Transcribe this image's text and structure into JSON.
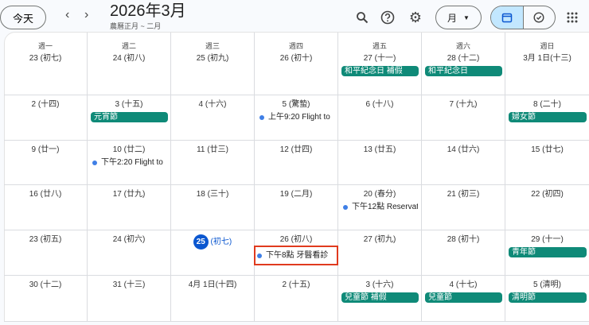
{
  "header": {
    "today": "今天",
    "title": "2026年3月",
    "subtitle": "農曆正月 ~ 二月",
    "view": "月",
    "prev": "‹",
    "next": "›"
  },
  "icons": [
    "search-icon",
    "help-icon",
    "settings-icon",
    "calendar-icon",
    "tasks-icon",
    "apps-icon"
  ],
  "colors": {
    "holiday": "#0f8a78",
    "today": "#0b57d0",
    "event_dot": "#3f7fe6",
    "highlight": "#e03a1e"
  },
  "weekdays": [
    "週一",
    "週二",
    "週三",
    "週四",
    "週五",
    "週六",
    "週日"
  ],
  "weeks": [
    [
      {
        "d": "23 (初七)"
      },
      {
        "d": "24 (初八)"
      },
      {
        "d": "25 (初九)"
      },
      {
        "d": "26 (初十)"
      },
      {
        "d": "27 (十一)",
        "chips": [
          "和平紀念日 補假"
        ]
      },
      {
        "d": "28 (十二)",
        "chips": [
          "和平紀念日"
        ]
      },
      {
        "d": "3月 1日(十三)"
      }
    ],
    [
      {
        "d": "2 (十四)"
      },
      {
        "d": "3 (十五)",
        "chips": [
          "元宵節"
        ]
      },
      {
        "d": "4 (十六)"
      },
      {
        "d": "5 (驚蟄)",
        "events": [
          "上午9:20 Flight to"
        ]
      },
      {
        "d": "6 (十八)"
      },
      {
        "d": "7 (十九)"
      },
      {
        "d": "8 (二十)",
        "chips": [
          "婦女節"
        ]
      }
    ],
    [
      {
        "d": "9 (廿一)"
      },
      {
        "d": "10 (廿二)",
        "events": [
          "下午2:20 Flight to"
        ]
      },
      {
        "d": "11 (廿三)"
      },
      {
        "d": "12 (廿四)"
      },
      {
        "d": "13 (廿五)"
      },
      {
        "d": "14 (廿六)"
      },
      {
        "d": "15 (廿七)"
      }
    ],
    [
      {
        "d": "16 (廿八)"
      },
      {
        "d": "17 (廿九)"
      },
      {
        "d": "18 (三十)"
      },
      {
        "d": "19 (二月)"
      },
      {
        "d": "20 (春分)",
        "events": [
          "下午12點 Reservat"
        ]
      },
      {
        "d": "21 (初三)"
      },
      {
        "d": "22 (初四)"
      }
    ],
    [
      {
        "d": "23 (初五)"
      },
      {
        "d": "24 (初六)"
      },
      {
        "today": true,
        "num": "25",
        "lunar": "(初七)"
      },
      {
        "d": "26 (初八)",
        "events": [
          "下午8點 牙醫看診"
        ],
        "highlight": true
      },
      {
        "d": "27 (初九)"
      },
      {
        "d": "28 (初十)"
      },
      {
        "d": "29 (十一)",
        "chips": [
          "青年節"
        ]
      }
    ],
    [
      {
        "d": "30 (十二)"
      },
      {
        "d": "31 (十三)"
      },
      {
        "d": "4月 1日(十四)"
      },
      {
        "d": "2 (十五)"
      },
      {
        "d": "3 (十六)",
        "chips": [
          "兒童節 補假"
        ]
      },
      {
        "d": "4 (十七)",
        "chips": [
          "兒童節"
        ]
      },
      {
        "d": "5 (清明)",
        "chips": [
          "清明節"
        ]
      }
    ]
  ]
}
